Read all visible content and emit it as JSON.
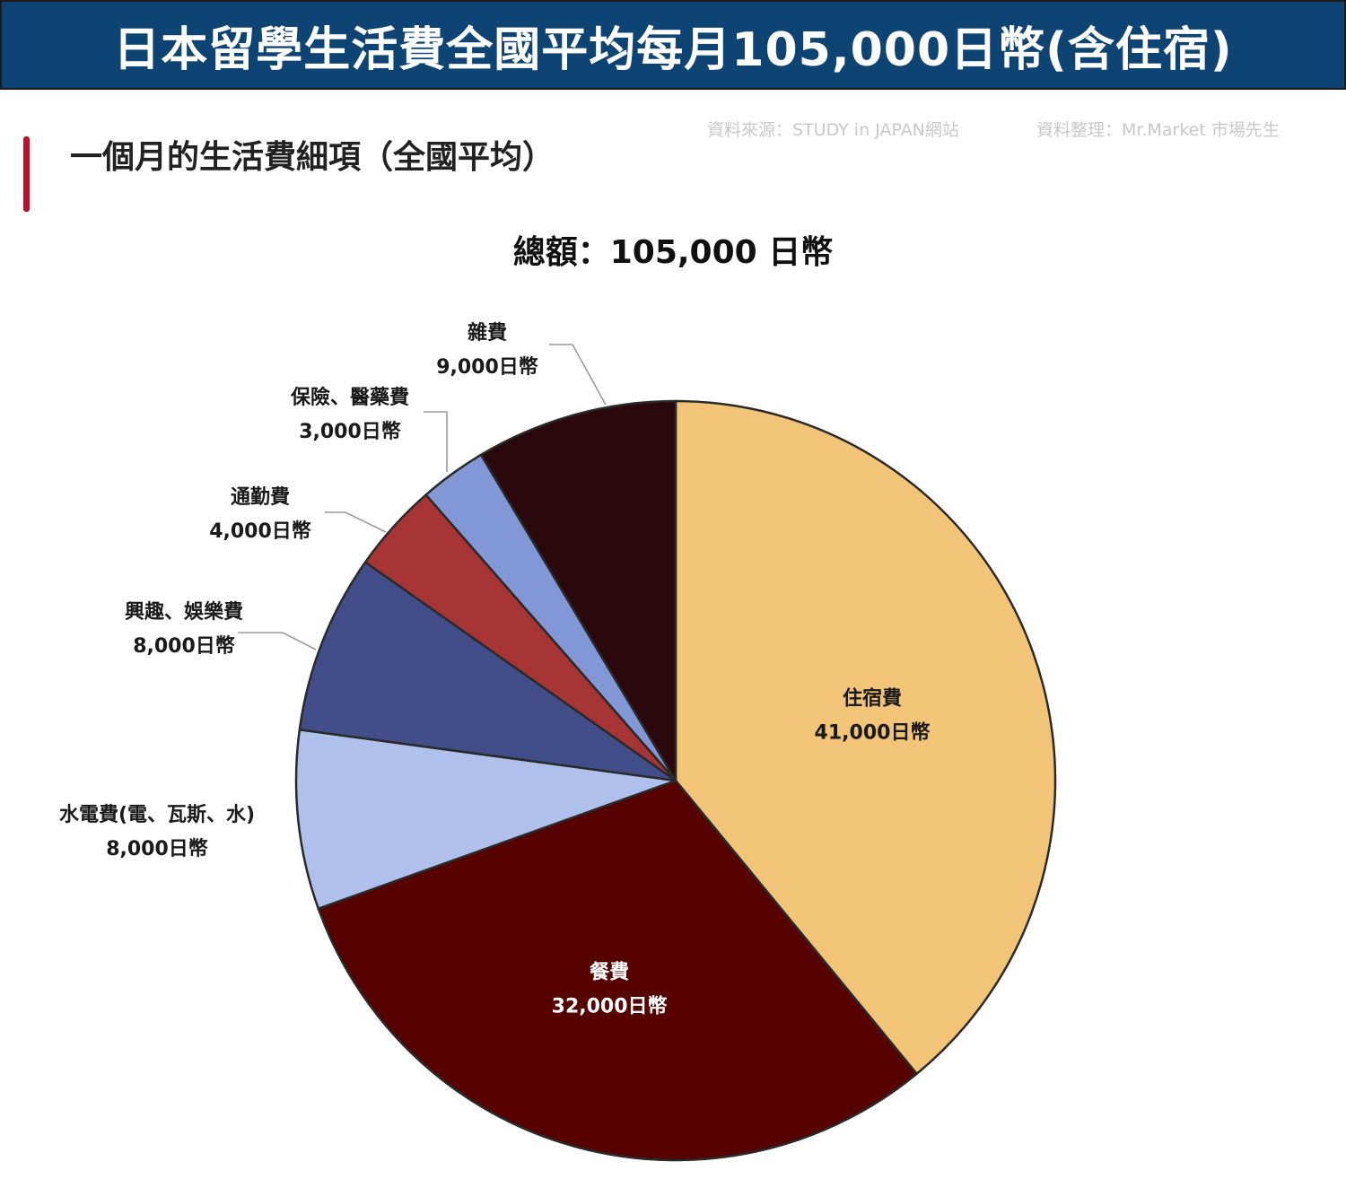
{
  "banner": {
    "title": "日本留學生活費全國平均每月105,000日幣(含住宿)",
    "background": "#0d4474"
  },
  "section": {
    "title": "一個月的生活費細項（全國平均）",
    "accent_color": "#b5152b"
  },
  "source": {
    "data_source": "資料來源：STUDY in JAPAN網站",
    "compiled_by": "資料整理：Mr.Market 市場先生"
  },
  "total": {
    "label": "總額：105,000 日幣"
  },
  "chart_data": {
    "type": "pie",
    "title": "",
    "unit": "日幣",
    "total": 105000,
    "start": "12 o'clock",
    "direction": "clockwise",
    "slices": [
      {
        "name": "住宿費",
        "value": 41000,
        "value_label": "41,000日幣",
        "color": "#f2c477",
        "label_color": "#1a1a1a",
        "label_placement": "inside"
      },
      {
        "name": "餐費",
        "value": 32000,
        "value_label": "32,000日幣",
        "color": "#560000",
        "label_color": "#ffffff",
        "label_placement": "inside"
      },
      {
        "name": "水電費(電、瓦斯、水)",
        "value": 8000,
        "value_label": "8,000日幣",
        "color": "#afc0ec",
        "label_color": "#1a1a1a",
        "label_placement": "outside"
      },
      {
        "name": "興趣、娛樂費",
        "value": 8000,
        "value_label": "8,000日幣",
        "color": "#414e8a",
        "label_color": "#1a1a1a",
        "label_placement": "outside"
      },
      {
        "name": "通勤費",
        "value": 4000,
        "value_label": "4,000日幣",
        "color": "#a83535",
        "label_color": "#1a1a1a",
        "label_placement": "outside"
      },
      {
        "name": "保險、醫藥費",
        "value": 3000,
        "value_label": "3,000日幣",
        "color": "#8197d6",
        "label_color": "#1a1a1a",
        "label_placement": "outside"
      },
      {
        "name": "雜費",
        "value": 9000,
        "value_label": "9,000日幣",
        "color": "#2b080b",
        "label_color": "#1a1a1a",
        "label_placement": "outside"
      }
    ]
  }
}
